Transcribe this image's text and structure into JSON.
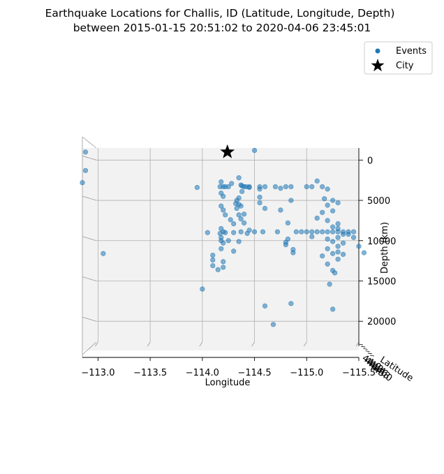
{
  "chart_data": {
    "type": "scatter",
    "title_line1": "Earthquake Locations for Challis, ID (Latitude, Longitude, Depth)",
    "title_line2": "between 2015-01-15 20:51:02 to 2020-04-06 23:45:01",
    "xlabel": "Longitude",
    "ylabel": "Depth (km)",
    "zlabel": "Latitude",
    "x_ticks": [
      "−113.0",
      "−113.5",
      "−114.0",
      "−114.5",
      "−115.0",
      "−115.5"
    ],
    "x_tick_values": [
      -113.0,
      -113.5,
      -114.0,
      -114.5,
      -115.0,
      -115.5
    ],
    "depth_ticks": [
      "0",
      "5000",
      "10000",
      "15000",
      "20000"
    ],
    "depth_tick_values": [
      0,
      5000,
      10000,
      15000,
      20000
    ],
    "lat_ticks": [
      "44.0",
      "44.2",
      "44.4",
      "44.6",
      "44.8",
      "45.0"
    ],
    "xlim": [
      -112.85,
      -115.5
    ],
    "depth_lim": [
      -1500,
      23100
    ],
    "legend": [
      {
        "label": "Events",
        "marker": "circle",
        "color": "#1f77b4"
      },
      {
        "label": "City",
        "marker": "star",
        "color": "#000000"
      }
    ],
    "legend_position": "upper right",
    "colors": {
      "events": "#1f77b4",
      "city": "#000000",
      "pane": "#f2f2f2",
      "grid": "#b0b0b0"
    },
    "city": {
      "x": -114.24,
      "depth": -1000
    },
    "series": [
      {
        "name": "Events",
        "points": [
          [
            -112.88,
            -1000
          ],
          [
            -112.88,
            1300
          ],
          [
            -112.85,
            2800
          ],
          [
            -113.05,
            11600
          ],
          [
            -113.95,
            3400
          ],
          [
            -114.05,
            9000
          ],
          [
            -114.1,
            11800
          ],
          [
            -114.1,
            12400
          ],
          [
            -114.1,
            13100
          ],
          [
            -114.15,
            13600
          ],
          [
            -114.2,
            13300
          ],
          [
            -114.17,
            3300
          ],
          [
            -114.2,
            3300
          ],
          [
            -114.22,
            3300
          ],
          [
            -114.25,
            3300
          ],
          [
            -114.18,
            2700
          ],
          [
            -114.18,
            4100
          ],
          [
            -114.2,
            4500
          ],
          [
            -114.18,
            5700
          ],
          [
            -114.2,
            6200
          ],
          [
            -114.22,
            6800
          ],
          [
            -114.18,
            8500
          ],
          [
            -114.2,
            8900
          ],
          [
            -114.18,
            9600
          ],
          [
            -114.18,
            10000
          ],
          [
            -114.2,
            10300
          ],
          [
            -114.18,
            11000
          ],
          [
            -114.2,
            12600
          ],
          [
            -114.22,
            9000
          ],
          [
            -114.25,
            10000
          ],
          [
            -114.27,
            7400
          ],
          [
            -114.3,
            7900
          ],
          [
            -114.3,
            11300
          ],
          [
            -114.35,
            10100
          ],
          [
            -114.35,
            2200
          ],
          [
            -114.37,
            3100
          ],
          [
            -114.38,
            3200
          ],
          [
            -114.4,
            3300
          ],
          [
            -114.42,
            3300
          ],
          [
            -114.45,
            3300
          ],
          [
            -114.38,
            3900
          ],
          [
            -114.35,
            4700
          ],
          [
            -114.33,
            5000
          ],
          [
            -114.32,
            5400
          ],
          [
            -114.35,
            5500
          ],
          [
            -114.37,
            5700
          ],
          [
            -114.33,
            6000
          ],
          [
            -114.35,
            6800
          ],
          [
            -114.37,
            7300
          ],
          [
            -114.4,
            7800
          ],
          [
            -114.37,
            8900
          ],
          [
            -114.3,
            9000
          ],
          [
            -114.17,
            9100
          ],
          [
            -114.45,
            8700
          ],
          [
            -114.4,
            6700
          ],
          [
            -114.28,
            2900
          ],
          [
            -114.5,
            -1200
          ],
          [
            -114.55,
            3300
          ],
          [
            -114.6,
            3300
          ],
          [
            -114.55,
            3600
          ],
          [
            -114.55,
            4600
          ],
          [
            -114.55,
            5300
          ],
          [
            -114.6,
            6000
          ],
          [
            -114.58,
            8900
          ],
          [
            -114.5,
            8900
          ],
          [
            -114.43,
            9100
          ],
          [
            -114.45,
            3400
          ],
          [
            -114.7,
            3300
          ],
          [
            -114.75,
            3500
          ],
          [
            -114.8,
            3300
          ],
          [
            -114.85,
            3300
          ],
          [
            -114.75,
            6200
          ],
          [
            -114.82,
            7800
          ],
          [
            -114.82,
            9800
          ],
          [
            -114.8,
            10500
          ],
          [
            -114.8,
            10200
          ],
          [
            -114.87,
            11100
          ],
          [
            -114.87,
            11500
          ],
          [
            -114.72,
            8900
          ],
          [
            -114.85,
            5000
          ],
          [
            -114.6,
            18100
          ],
          [
            -114.68,
            20400
          ],
          [
            -114.85,
            17800
          ],
          [
            -114.0,
            16000
          ],
          [
            -114.9,
            8900
          ],
          [
            -114.95,
            8900
          ],
          [
            -115.0,
            8900
          ],
          [
            -115.05,
            8900
          ],
          [
            -115.1,
            8900
          ],
          [
            -115.15,
            8900
          ],
          [
            -115.2,
            8900
          ],
          [
            -115.25,
            8900
          ],
          [
            -115.3,
            8900
          ],
          [
            -115.35,
            8900
          ],
          [
            -115.4,
            8900
          ],
          [
            -115.45,
            8900
          ],
          [
            -115.0,
            3300
          ],
          [
            -115.05,
            3300
          ],
          [
            -115.1,
            2600
          ],
          [
            -115.15,
            3300
          ],
          [
            -115.2,
            3600
          ],
          [
            -115.17,
            4800
          ],
          [
            -115.2,
            5600
          ],
          [
            -115.25,
            5000
          ],
          [
            -115.3,
            5300
          ],
          [
            -115.15,
            6500
          ],
          [
            -115.25,
            6300
          ],
          [
            -115.1,
            7200
          ],
          [
            -115.2,
            7500
          ],
          [
            -115.3,
            7900
          ],
          [
            -115.25,
            8300
          ],
          [
            -115.3,
            8500
          ],
          [
            -115.35,
            9200
          ],
          [
            -115.3,
            9600
          ],
          [
            -115.2,
            9800
          ],
          [
            -115.25,
            10100
          ],
          [
            -115.3,
            10700
          ],
          [
            -115.35,
            10300
          ],
          [
            -115.2,
            11000
          ],
          [
            -115.25,
            11600
          ],
          [
            -115.3,
            11400
          ],
          [
            -115.35,
            11700
          ],
          [
            -115.15,
            11900
          ],
          [
            -115.3,
            12300
          ],
          [
            -115.2,
            12900
          ],
          [
            -115.25,
            13700
          ],
          [
            -115.27,
            14000
          ],
          [
            -115.22,
            15400
          ],
          [
            -115.25,
            18500
          ],
          [
            -115.5,
            10700
          ],
          [
            -115.55,
            11500
          ],
          [
            -115.45,
            9600
          ],
          [
            -115.05,
            9500
          ],
          [
            -115.4,
            9200
          ]
        ]
      }
    ]
  }
}
